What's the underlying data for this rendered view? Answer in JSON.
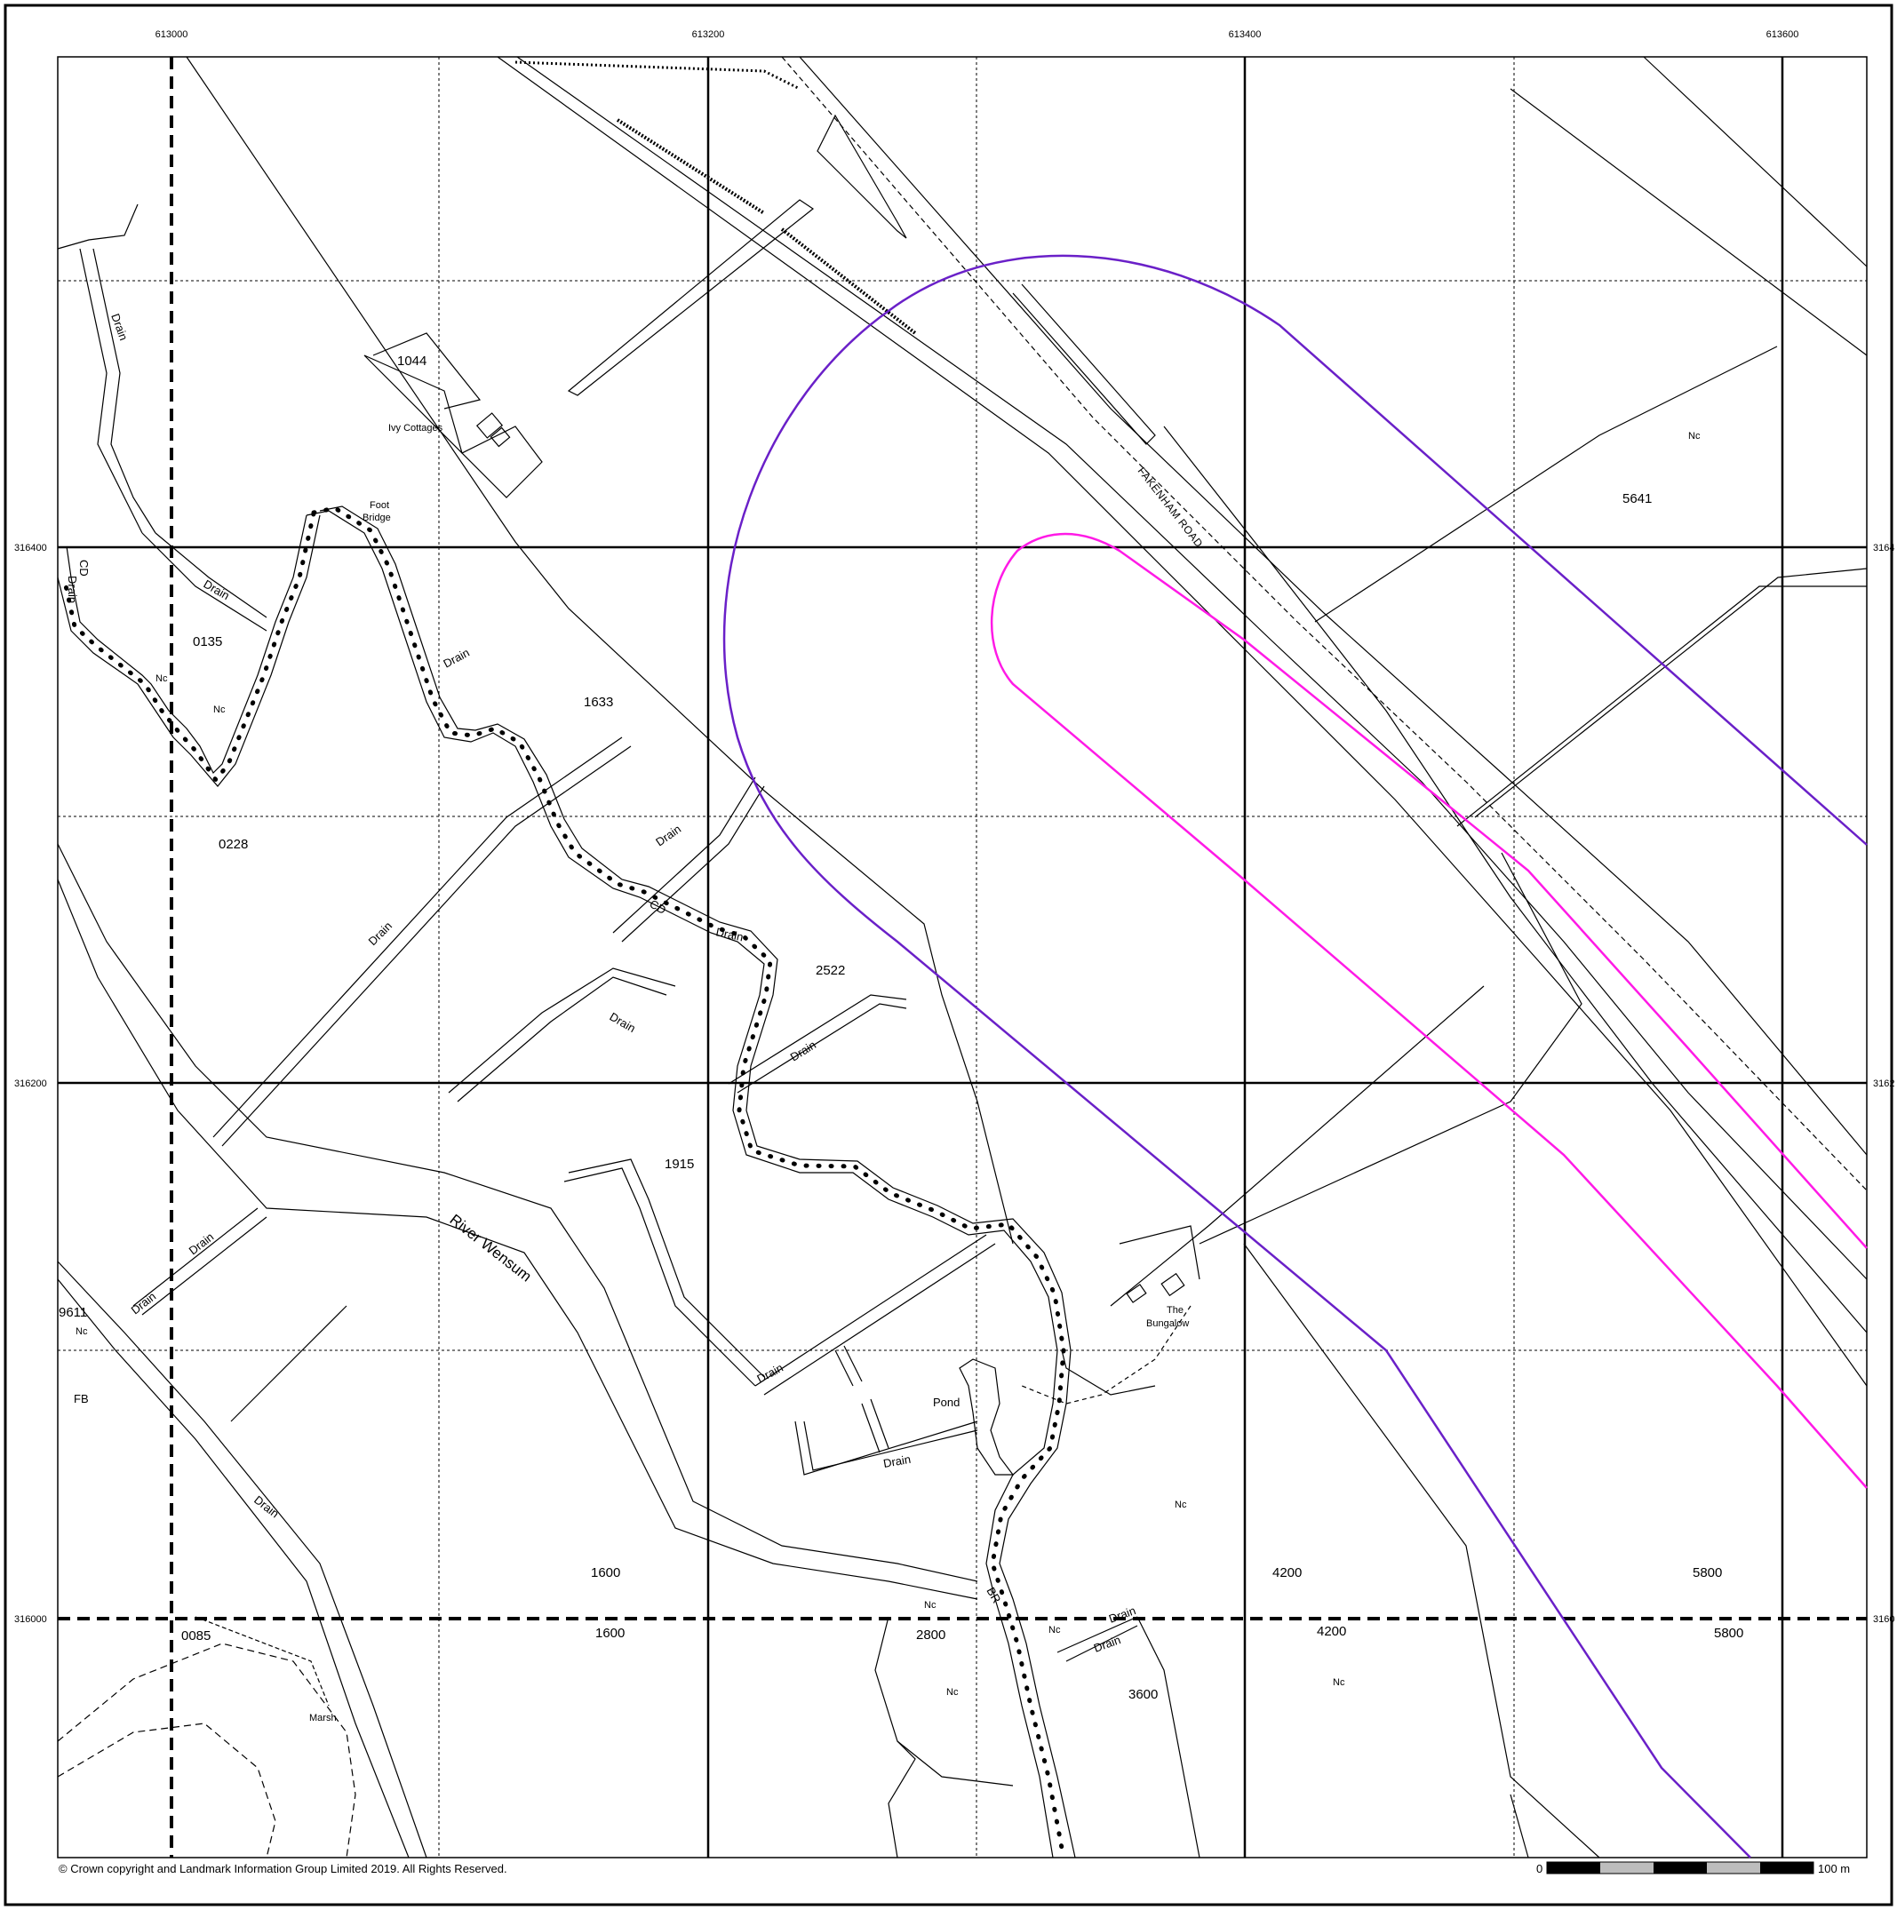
{
  "copyright": "© Crown copyright and Landmark Information Group Limited 2019.  All Rights Reserved.",
  "scale_bar": {
    "start_label": "0",
    "end_label": "100 m"
  },
  "grid": {
    "eastings": [
      "613000",
      "613200",
      "613400",
      "613600"
    ],
    "northings": [
      "316400",
      "316200",
      "316000"
    ],
    "northings_right": [
      "3164",
      "3162",
      "3160"
    ]
  },
  "labels": {
    "fakenham_road": "FAKENHAM ROAD",
    "river_wensum": "River Wensum",
    "ivy_cottages": "Ivy Cottages",
    "foot_bridge_1": "Foot",
    "foot_bridge_2": "Bridge",
    "the_bungalow_1": "The",
    "the_bungalow_2": "Bungalow",
    "pond": "Pond",
    "marsh": "Marsh",
    "fb": "FB",
    "cd_top": "CD",
    "cd_mid": "CD",
    "br": "BR",
    "drain": "Drain",
    "nc": "Nc"
  },
  "parcels": {
    "p1044": "1044",
    "p0135": "0135",
    "p1633": "1633",
    "p0228": "0228",
    "p2522": "2522",
    "p1915": "1915",
    "p9611": "9611",
    "p1600a": "1600",
    "p1600b": "1600",
    "p0085": "0085",
    "p2800": "2800",
    "p3600": "3600",
    "p4200a": "4200",
    "p4200b": "4200",
    "p5800a": "5800",
    "p5800b": "5800",
    "p5641": "5641"
  },
  "colors": {
    "outer_buffer": "#6a20c8",
    "inner_buffer": "#ff1ae6",
    "linework": "#000000"
  }
}
